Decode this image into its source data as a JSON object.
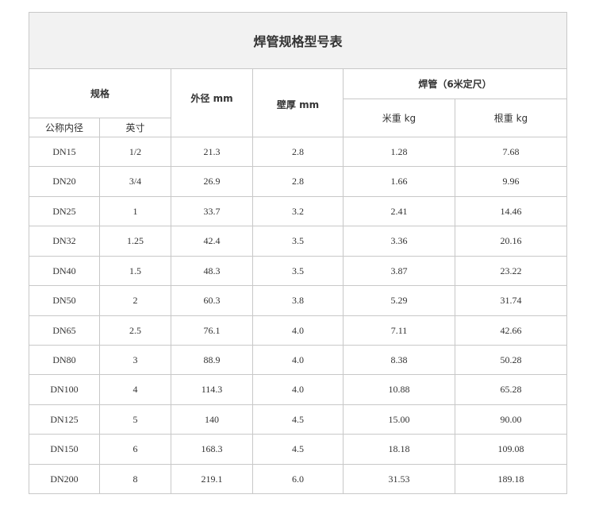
{
  "title": "焊管规格型号表",
  "header": {
    "spec": "规格",
    "nominal": "公称内径",
    "inch": "英寸",
    "od": "外径 mm",
    "wall": "壁厚 mm",
    "welded": "焊管（6米定尺）",
    "per_meter": "米重 kg",
    "per_pipe": "根重 kg"
  },
  "rows": [
    [
      "DN15",
      "1/2",
      "21.3",
      "2.8",
      "1.28",
      "7.68"
    ],
    [
      "DN20",
      "3/4",
      "26.9",
      "2.8",
      "1.66",
      "9.96"
    ],
    [
      "DN25",
      "1",
      "33.7",
      "3.2",
      "2.41",
      "14.46"
    ],
    [
      "DN32",
      "1.25",
      "42.4",
      "3.5",
      "3.36",
      "20.16"
    ],
    [
      "DN40",
      "1.5",
      "48.3",
      "3.5",
      "3.87",
      "23.22"
    ],
    [
      "DN50",
      "2",
      "60.3",
      "3.8",
      "5.29",
      "31.74"
    ],
    [
      "DN65",
      "2.5",
      "76.1",
      "4.0",
      "7.11",
      "42.66"
    ],
    [
      "DN80",
      "3",
      "88.9",
      "4.0",
      "8.38",
      "50.28"
    ],
    [
      "DN100",
      "4",
      "114.3",
      "4.0",
      "10.88",
      "65.28"
    ],
    [
      "DN125",
      "5",
      "140",
      "4.5",
      "15.00",
      "90.00"
    ],
    [
      "DN150",
      "6",
      "168.3",
      "4.5",
      "18.18",
      "109.08"
    ],
    [
      "DN200",
      "8",
      "219.1",
      "6.0",
      "31.53",
      "189.18"
    ]
  ]
}
